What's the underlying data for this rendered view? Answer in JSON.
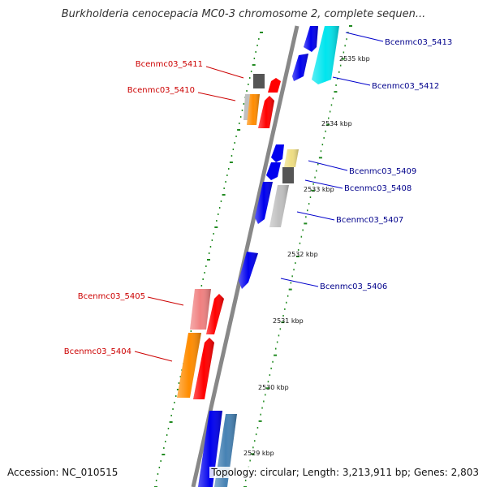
{
  "title": "Burkholderia cenocepacia MC0-3 chromosome 2, complete sequen...",
  "accession": "Accession: NC_010515",
  "topology": "Topology: circular; Length: 3,213,911 bp; Genes: 2,803",
  "colors": {
    "backbone": "#888888",
    "tick": "#228b22",
    "right_label": "#00008b",
    "left_label": "#cc0000"
  },
  "kbp_marks": [
    {
      "label": "2535 kbp"
    },
    {
      "label": "2534 kbp"
    },
    {
      "label": "2533 kbp"
    },
    {
      "label": "2532 kbp"
    },
    {
      "label": "2531 kbp"
    },
    {
      "label": "2530 kbp"
    },
    {
      "label": "2529 kbp"
    }
  ],
  "genes": [
    {
      "label": "Bcenmc03_5413",
      "side": "right",
      "color": "#0000ee"
    },
    {
      "label": "Bcenmc03_5412",
      "side": "right",
      "color": "#00e5ee"
    },
    {
      "label": "Bcenmc03_5411",
      "side": "left",
      "color": "#555555"
    },
    {
      "label": "Bcenmc03_5410",
      "side": "left",
      "color": "#ff8c00"
    },
    {
      "label": "Bcenmc03_5409",
      "side": "right",
      "color": "#eedd82"
    },
    {
      "label": "Bcenmc03_5408",
      "side": "right",
      "color": "#555555"
    },
    {
      "label": "Bcenmc03_5407",
      "side": "right",
      "color": "#c0c0c0"
    },
    {
      "label": "Bcenmc03_5406",
      "side": "right",
      "color": "#0000ee"
    },
    {
      "label": "Bcenmc03_5405",
      "side": "left",
      "color": "#f08080"
    },
    {
      "label": "Bcenmc03_5404",
      "side": "left",
      "color": "#ff8c00"
    }
  ]
}
